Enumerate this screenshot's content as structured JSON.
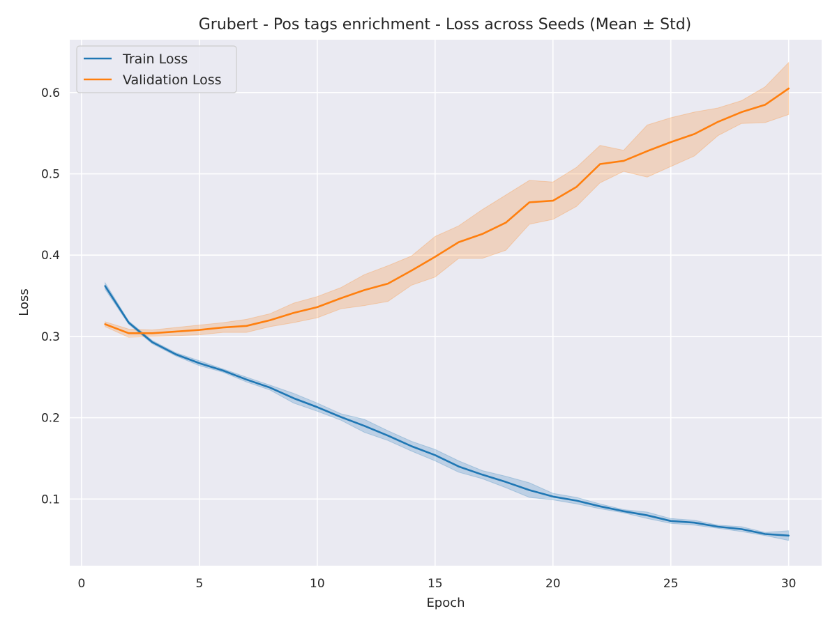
{
  "chart_data": {
    "type": "line",
    "title": "Grubert - Pos tags enrichment - Loss across Seeds (Mean ± Std)",
    "xlabel": "Epoch",
    "ylabel": "Loss",
    "xlim": [
      -0.5,
      31.4
    ],
    "ylim": [
      0.018,
      0.665
    ],
    "xticks": [
      0,
      5,
      10,
      15,
      20,
      25,
      30
    ],
    "yticks": [
      0.1,
      0.2,
      0.3,
      0.4,
      0.5,
      0.6
    ],
    "grid": true,
    "legend_position": "top-left",
    "x": [
      1,
      2,
      3,
      4,
      5,
      6,
      7,
      8,
      9,
      10,
      11,
      12,
      13,
      14,
      15,
      16,
      17,
      18,
      19,
      20,
      21,
      22,
      23,
      24,
      25,
      26,
      27,
      28,
      29,
      30
    ],
    "series": [
      {
        "name": "Train Loss",
        "color": "#1f77b4",
        "values": [
          0.362,
          0.317,
          0.293,
          0.278,
          0.267,
          0.258,
          0.247,
          0.237,
          0.224,
          0.213,
          0.201,
          0.19,
          0.178,
          0.165,
          0.154,
          0.14,
          0.13,
          0.121,
          0.111,
          0.103,
          0.098,
          0.091,
          0.085,
          0.08,
          0.073,
          0.071,
          0.066,
          0.063,
          0.057,
          0.055
        ],
        "std": [
          0.004,
          0.002,
          0.002,
          0.002,
          0.003,
          0.002,
          0.003,
          0.003,
          0.006,
          0.005,
          0.004,
          0.008,
          0.006,
          0.006,
          0.007,
          0.007,
          0.005,
          0.007,
          0.009,
          0.004,
          0.004,
          0.003,
          0.002,
          0.004,
          0.003,
          0.003,
          0.002,
          0.003,
          0.002,
          0.006
        ]
      },
      {
        "name": "Validation Loss",
        "color": "#ff7f0e",
        "values": [
          0.315,
          0.304,
          0.304,
          0.306,
          0.308,
          0.311,
          0.313,
          0.32,
          0.329,
          0.336,
          0.347,
          0.357,
          0.365,
          0.381,
          0.398,
          0.416,
          0.426,
          0.44,
          0.465,
          0.467,
          0.484,
          0.512,
          0.516,
          0.528,
          0.539,
          0.549,
          0.564,
          0.576,
          0.585,
          0.605
        ],
        "std": [
          0.003,
          0.005,
          0.004,
          0.005,
          0.006,
          0.006,
          0.008,
          0.008,
          0.012,
          0.013,
          0.013,
          0.019,
          0.022,
          0.018,
          0.025,
          0.02,
          0.03,
          0.034,
          0.027,
          0.023,
          0.024,
          0.023,
          0.013,
          0.032,
          0.03,
          0.027,
          0.017,
          0.014,
          0.022,
          0.032
        ]
      }
    ]
  }
}
